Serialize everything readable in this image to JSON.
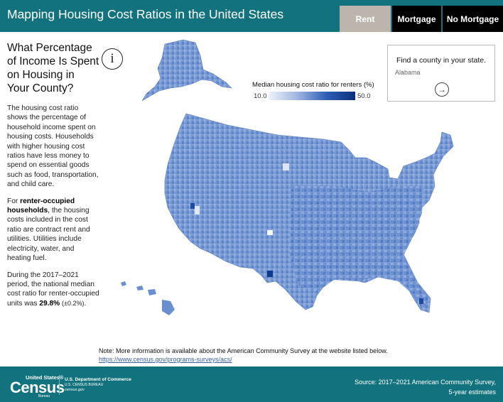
{
  "header": {
    "title": "Mapping Housing Cost Ratios in the United States",
    "tabs": [
      {
        "label": "Rent",
        "active": true
      },
      {
        "label": "Mortgage",
        "active": false
      },
      {
        "label": "No Mortgage",
        "active": false
      }
    ]
  },
  "sidebar": {
    "heading": "What Percentage of Income Is Spent on Housing in Your County?",
    "para1": "The housing cost ratio shows the percentage of household income spent on housing costs. Households with higher housing cost ratios have less money to spend on essential goods such as food, transportation, and child care.",
    "para2_prefix": "For ",
    "para2_bold": "renter-occupied households",
    "para2_suffix": ", the housing costs included in the cost ratio are contract rent and utilities. Utilities include electricity, water, and heating fuel.",
    "para3_prefix": "During the 2017–2021 period, the national median cost ratio for renter-occupied units was ",
    "para3_value": "29.8%",
    "para3_moe": "(±0.2%)",
    "para3_end": "."
  },
  "info_icon": "info-icon",
  "legend": {
    "title": "Median housing cost ratio for renters (%)",
    "min": "10.0",
    "max": "50.0",
    "colors": [
      "#eef2fa",
      "#0d2f7c"
    ]
  },
  "finder": {
    "title": "Find a county in your state.",
    "value": "Alabama",
    "go_icon": "arrow-right-icon"
  },
  "note": {
    "text": "Note: More information is available about the American Community Survey at the website listed below.",
    "link": "https://www.census.gov/programs-surveys/acs/"
  },
  "footer": {
    "logo_sup": "United States®",
    "logo_word": "Census",
    "logo_bureau": "Bureau",
    "dept_line1": "U.S. Department of Commerce",
    "dept_line2": "U.S. CENSUS BUREAU",
    "dept_line3": "census.gov",
    "source_line1": "Source: 2017–2021 American Community Survey,",
    "source_line2": "5-year estimates"
  },
  "colors": {
    "header_bg": "#12737e",
    "tab_active": "#bcb4ad",
    "tab_inactive": "#000000",
    "map_fill": "#6f93d2",
    "map_dark": "#1f4fa6"
  }
}
